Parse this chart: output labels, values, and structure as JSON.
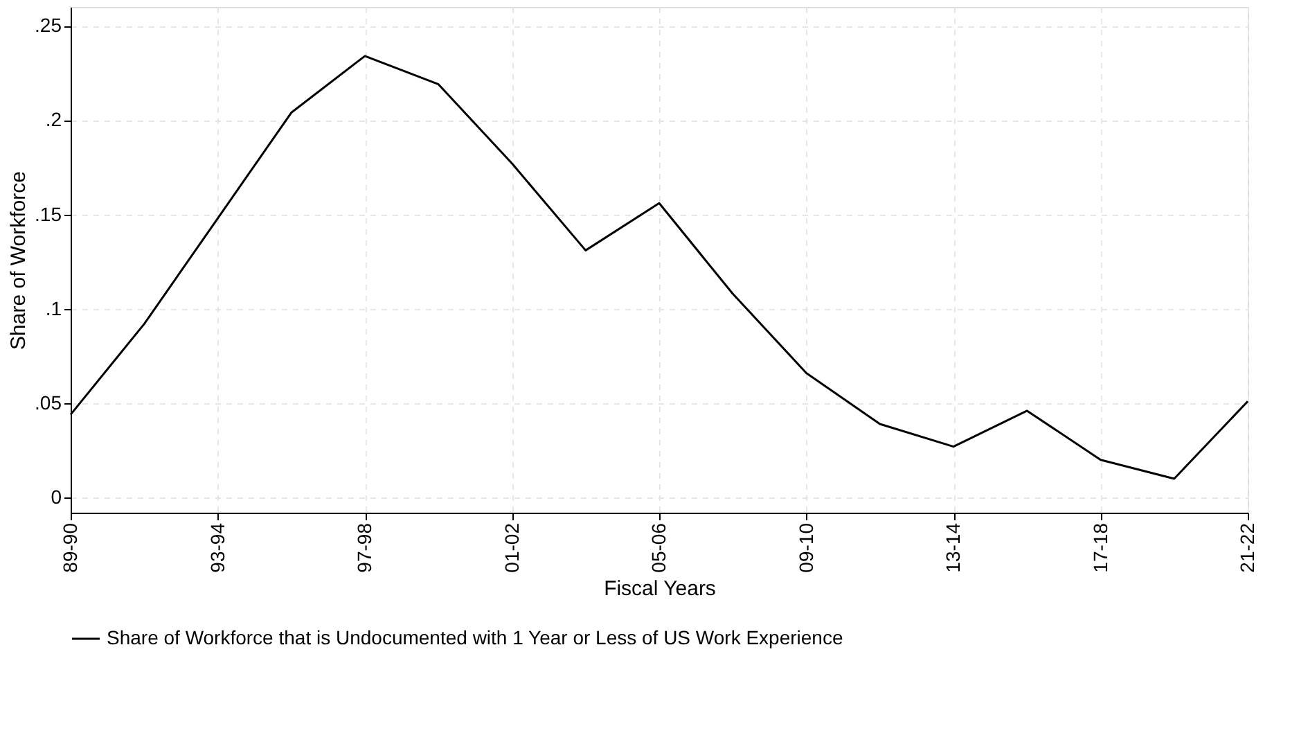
{
  "chart_data": {
    "type": "line",
    "xlabel": "Fiscal Years",
    "ylabel": "Share of Workforce",
    "categories": [
      "89-90",
      null,
      "93-94",
      null,
      "97-98",
      null,
      "01-02",
      null,
      "05-06",
      null,
      "09-10",
      null,
      "13-14",
      null,
      "17-18",
      null,
      "21-22"
    ],
    "series": [
      {
        "name": "Share of Workforce that is Undocumented with 1 Year or Less of US Work Experience",
        "color": "#000000",
        "values": [
          0.044,
          0.092,
          0.148,
          0.204,
          0.234,
          0.219,
          0.177,
          0.131,
          0.156,
          0.108,
          0.066,
          0.039,
          0.027,
          0.046,
          0.02,
          0.01,
          0.051
        ]
      }
    ],
    "ylim": [
      -0.008,
      0.26
    ],
    "yticks": [
      {
        "value": 0,
        "label": "0"
      },
      {
        "value": 0.05,
        "label": ".05"
      },
      {
        "value": 0.1,
        "label": ".1"
      },
      {
        "value": 0.15,
        "label": ".15"
      },
      {
        "value": 0.2,
        "label": ".2"
      },
      {
        "value": 0.25,
        "label": ".25"
      }
    ],
    "grid": true,
    "legend": "bottom",
    "marker": "none",
    "line_style": "solid"
  }
}
